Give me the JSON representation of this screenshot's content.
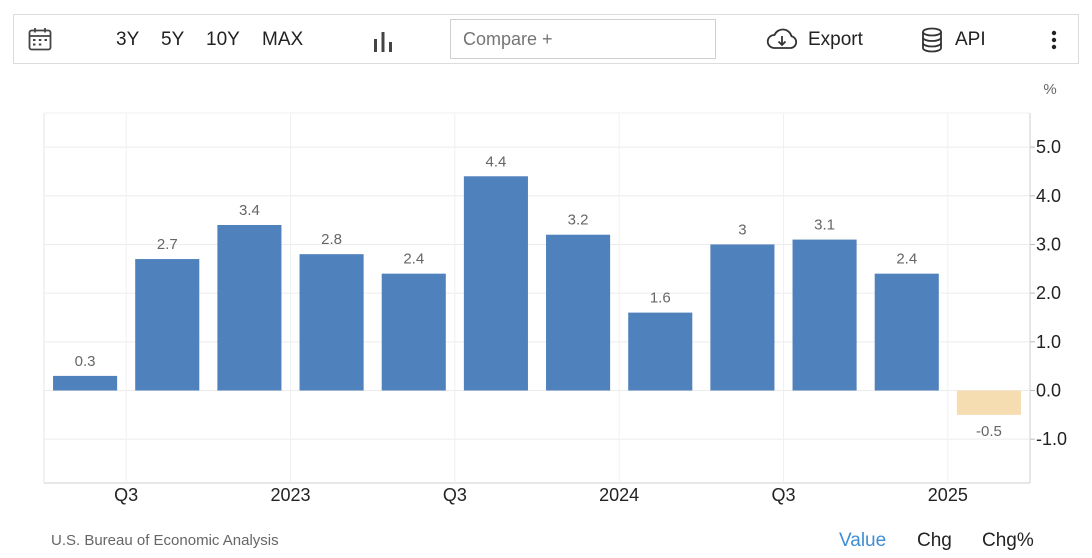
{
  "toolbar": {
    "calendar_icon": "calendar-icon",
    "ranges": [
      "3Y",
      "5Y",
      "10Y",
      "MAX"
    ],
    "chart_type_icon": "bar-chart-icon",
    "compare_placeholder": "Compare +",
    "export_label": "Export",
    "export_icon": "cloud-download-icon",
    "api_label": "API",
    "api_icon": "database-icon",
    "more_icon": "more-vertical-icon"
  },
  "footer": {
    "source": "U.S. Bureau of Economic Analysis",
    "modes": [
      "Value",
      "Chg",
      "Chg%"
    ],
    "active_mode": "Value"
  },
  "colors": {
    "positive_bar": "#4f81bd",
    "negative_bar": "#f6dcb1",
    "active_mode": "#3d8ed6",
    "grid": "#ececec"
  },
  "chart_data": {
    "type": "bar",
    "title": "",
    "xlabel": "",
    "ylabel": "%",
    "values": [
      0.3,
      2.7,
      3.4,
      2.8,
      2.4,
      4.4,
      3.2,
      1.6,
      3.0,
      3.1,
      2.4,
      -0.5
    ],
    "value_labels": [
      "0.3",
      "2.7",
      "3.4",
      "2.8",
      "2.4",
      "4.4",
      "3.2",
      "1.6",
      "3",
      "3.1",
      "2.4",
      "-0.5"
    ],
    "x_tick_labels": [
      "Q3",
      "2023",
      "Q3",
      "2024",
      "Q3",
      "2025"
    ],
    "y_ticks": [
      5.0,
      4.0,
      3.0,
      2.0,
      1.0,
      0.0,
      -1.0
    ],
    "y_tick_labels": [
      "5.0",
      "4.0",
      "3.0",
      "2.0",
      "1.0",
      "0.0",
      "-1.0"
    ],
    "ylim": [
      -1.9,
      5.7
    ],
    "grid": true,
    "y_axis_position": "right"
  }
}
